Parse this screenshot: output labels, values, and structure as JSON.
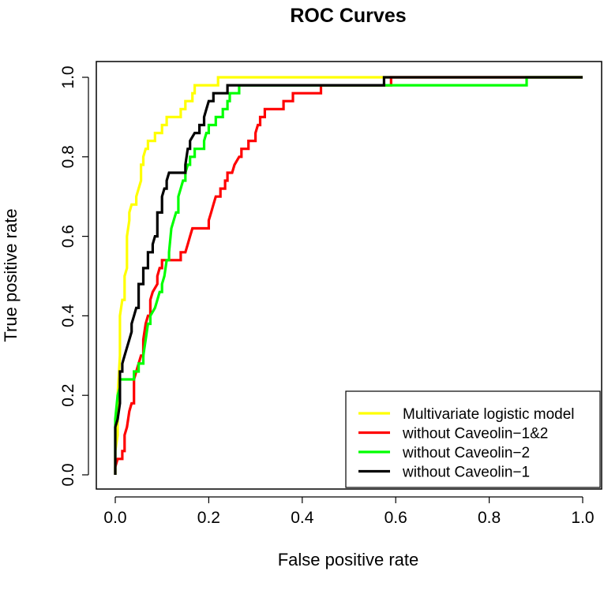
{
  "chart_data": {
    "type": "line",
    "title": "ROC Curves",
    "xlabel": "False positive rate",
    "ylabel": "True positive rate",
    "xlim": [
      0,
      1
    ],
    "ylim": [
      0,
      1
    ],
    "xticks": [
      "0.0",
      "0.2",
      "0.4",
      "0.6",
      "0.8",
      "1.0"
    ],
    "yticks": [
      "0.0",
      "0.2",
      "0.4",
      "0.6",
      "0.8",
      "1.0"
    ],
    "xtick_values": [
      0,
      0.2,
      0.4,
      0.6,
      0.8,
      1.0
    ],
    "ytick_values": [
      0,
      0.2,
      0.4,
      0.6,
      0.8,
      1.0
    ],
    "legend_position": "bottom-right",
    "series": [
      {
        "name": "Multivariate logistic model",
        "color": "#FFFF00",
        "points": [
          [
            0,
            0
          ],
          [
            0,
            0.06
          ],
          [
            0.005,
            0.1
          ],
          [
            0.005,
            0.2
          ],
          [
            0.01,
            0.3
          ],
          [
            0.01,
            0.4
          ],
          [
            0.015,
            0.44
          ],
          [
            0.02,
            0.44
          ],
          [
            0.02,
            0.5
          ],
          [
            0.025,
            0.52
          ],
          [
            0.025,
            0.6
          ],
          [
            0.03,
            0.64
          ],
          [
            0.03,
            0.66
          ],
          [
            0.035,
            0.68
          ],
          [
            0.045,
            0.68
          ],
          [
            0.045,
            0.7
          ],
          [
            0.05,
            0.72
          ],
          [
            0.055,
            0.74
          ],
          [
            0.055,
            0.78
          ],
          [
            0.06,
            0.78
          ],
          [
            0.06,
            0.8
          ],
          [
            0.065,
            0.82
          ],
          [
            0.07,
            0.82
          ],
          [
            0.07,
            0.84
          ],
          [
            0.085,
            0.84
          ],
          [
            0.085,
            0.86
          ],
          [
            0.1,
            0.86
          ],
          [
            0.1,
            0.88
          ],
          [
            0.11,
            0.88
          ],
          [
            0.11,
            0.9
          ],
          [
            0.14,
            0.9
          ],
          [
            0.14,
            0.92
          ],
          [
            0.15,
            0.92
          ],
          [
            0.15,
            0.94
          ],
          [
            0.165,
            0.94
          ],
          [
            0.165,
            0.96
          ],
          [
            0.17,
            0.96
          ],
          [
            0.17,
            0.98
          ],
          [
            0.2,
            0.98
          ],
          [
            0.2,
            0.98
          ],
          [
            0.22,
            0.98
          ],
          [
            0.22,
            1.0
          ],
          [
            0.58,
            1.0
          ],
          [
            1.0,
            1.0
          ]
        ]
      },
      {
        "name": "without Caveolin−1&2",
        "color": "#FF0000",
        "points": [
          [
            0,
            0
          ],
          [
            0,
            0.02
          ],
          [
            0.005,
            0.04
          ],
          [
            0.015,
            0.04
          ],
          [
            0.015,
            0.06
          ],
          [
            0.02,
            0.06
          ],
          [
            0.02,
            0.1
          ],
          [
            0.025,
            0.12
          ],
          [
            0.03,
            0.16
          ],
          [
            0.035,
            0.18
          ],
          [
            0.04,
            0.18
          ],
          [
            0.04,
            0.24
          ],
          [
            0.045,
            0.26
          ],
          [
            0.05,
            0.28
          ],
          [
            0.055,
            0.3
          ],
          [
            0.06,
            0.3
          ],
          [
            0.06,
            0.34
          ],
          [
            0.065,
            0.38
          ],
          [
            0.07,
            0.4
          ],
          [
            0.075,
            0.4
          ],
          [
            0.075,
            0.44
          ],
          [
            0.08,
            0.46
          ],
          [
            0.09,
            0.48
          ],
          [
            0.09,
            0.5
          ],
          [
            0.095,
            0.52
          ],
          [
            0.1,
            0.52
          ],
          [
            0.1,
            0.54
          ],
          [
            0.14,
            0.54
          ],
          [
            0.14,
            0.56
          ],
          [
            0.15,
            0.56
          ],
          [
            0.155,
            0.58
          ],
          [
            0.16,
            0.6
          ],
          [
            0.165,
            0.62
          ],
          [
            0.2,
            0.62
          ],
          [
            0.2,
            0.64
          ],
          [
            0.205,
            0.66
          ],
          [
            0.21,
            0.68
          ],
          [
            0.215,
            0.7
          ],
          [
            0.225,
            0.7
          ],
          [
            0.225,
            0.72
          ],
          [
            0.235,
            0.72
          ],
          [
            0.235,
            0.74
          ],
          [
            0.24,
            0.74
          ],
          [
            0.24,
            0.76
          ],
          [
            0.25,
            0.76
          ],
          [
            0.255,
            0.78
          ],
          [
            0.265,
            0.8
          ],
          [
            0.27,
            0.8
          ],
          [
            0.27,
            0.82
          ],
          [
            0.28,
            0.82
          ],
          [
            0.285,
            0.82
          ],
          [
            0.285,
            0.84
          ],
          [
            0.3,
            0.84
          ],
          [
            0.3,
            0.86
          ],
          [
            0.305,
            0.88
          ],
          [
            0.31,
            0.88
          ],
          [
            0.31,
            0.9
          ],
          [
            0.32,
            0.9
          ],
          [
            0.32,
            0.92
          ],
          [
            0.36,
            0.92
          ],
          [
            0.36,
            0.94
          ],
          [
            0.38,
            0.94
          ],
          [
            0.38,
            0.96
          ],
          [
            0.44,
            0.96
          ],
          [
            0.44,
            0.98
          ],
          [
            0.59,
            0.98
          ],
          [
            0.59,
            1.0
          ],
          [
            1.0,
            1.0
          ]
        ]
      },
      {
        "name": "without Caveolin−2",
        "color": "#00FF00",
        "points": [
          [
            0,
            0
          ],
          [
            0,
            0.14
          ],
          [
            0.005,
            0.2
          ],
          [
            0.01,
            0.22
          ],
          [
            0.01,
            0.24
          ],
          [
            0.04,
            0.24
          ],
          [
            0.04,
            0.26
          ],
          [
            0.05,
            0.26
          ],
          [
            0.05,
            0.28
          ],
          [
            0.06,
            0.28
          ],
          [
            0.06,
            0.3
          ],
          [
            0.065,
            0.34
          ],
          [
            0.07,
            0.38
          ],
          [
            0.075,
            0.38
          ],
          [
            0.075,
            0.4
          ],
          [
            0.085,
            0.42
          ],
          [
            0.09,
            0.44
          ],
          [
            0.095,
            0.46
          ],
          [
            0.1,
            0.46
          ],
          [
            0.1,
            0.48
          ],
          [
            0.105,
            0.5
          ],
          [
            0.11,
            0.54
          ],
          [
            0.115,
            0.54
          ],
          [
            0.115,
            0.56
          ],
          [
            0.12,
            0.62
          ],
          [
            0.125,
            0.64
          ],
          [
            0.13,
            0.66
          ],
          [
            0.135,
            0.66
          ],
          [
            0.135,
            0.7
          ],
          [
            0.14,
            0.72
          ],
          [
            0.145,
            0.74
          ],
          [
            0.15,
            0.74
          ],
          [
            0.15,
            0.76
          ],
          [
            0.155,
            0.78
          ],
          [
            0.16,
            0.78
          ],
          [
            0.16,
            0.8
          ],
          [
            0.17,
            0.8
          ],
          [
            0.17,
            0.82
          ],
          [
            0.19,
            0.82
          ],
          [
            0.19,
            0.84
          ],
          [
            0.195,
            0.86
          ],
          [
            0.2,
            0.86
          ],
          [
            0.2,
            0.88
          ],
          [
            0.215,
            0.88
          ],
          [
            0.215,
            0.9
          ],
          [
            0.23,
            0.9
          ],
          [
            0.23,
            0.92
          ],
          [
            0.24,
            0.92
          ],
          [
            0.24,
            0.94
          ],
          [
            0.245,
            0.94
          ],
          [
            0.245,
            0.96
          ],
          [
            0.265,
            0.96
          ],
          [
            0.265,
            0.98
          ],
          [
            0.575,
            0.98
          ],
          [
            0.88,
            0.98
          ],
          [
            0.88,
            1.0
          ],
          [
            1.0,
            1.0
          ]
        ]
      },
      {
        "name": "without Caveolin−1",
        "color": "#000000",
        "points": [
          [
            0,
            0
          ],
          [
            0,
            0.12
          ],
          [
            0.005,
            0.14
          ],
          [
            0.01,
            0.18
          ],
          [
            0.01,
            0.26
          ],
          [
            0.015,
            0.26
          ],
          [
            0.015,
            0.28
          ],
          [
            0.02,
            0.3
          ],
          [
            0.025,
            0.32
          ],
          [
            0.03,
            0.34
          ],
          [
            0.035,
            0.36
          ],
          [
            0.035,
            0.38
          ],
          [
            0.04,
            0.4
          ],
          [
            0.045,
            0.42
          ],
          [
            0.05,
            0.42
          ],
          [
            0.05,
            0.48
          ],
          [
            0.06,
            0.48
          ],
          [
            0.06,
            0.52
          ],
          [
            0.07,
            0.52
          ],
          [
            0.07,
            0.56
          ],
          [
            0.08,
            0.56
          ],
          [
            0.08,
            0.58
          ],
          [
            0.085,
            0.6
          ],
          [
            0.09,
            0.6
          ],
          [
            0.09,
            0.66
          ],
          [
            0.1,
            0.66
          ],
          [
            0.1,
            0.7
          ],
          [
            0.105,
            0.72
          ],
          [
            0.11,
            0.72
          ],
          [
            0.11,
            0.74
          ],
          [
            0.115,
            0.76
          ],
          [
            0.15,
            0.76
          ],
          [
            0.15,
            0.78
          ],
          [
            0.155,
            0.82
          ],
          [
            0.16,
            0.82
          ],
          [
            0.16,
            0.84
          ],
          [
            0.17,
            0.86
          ],
          [
            0.18,
            0.86
          ],
          [
            0.18,
            0.88
          ],
          [
            0.19,
            0.88
          ],
          [
            0.19,
            0.9
          ],
          [
            0.195,
            0.92
          ],
          [
            0.2,
            0.94
          ],
          [
            0.21,
            0.94
          ],
          [
            0.21,
            0.96
          ],
          [
            0.24,
            0.96
          ],
          [
            0.24,
            0.98
          ],
          [
            0.575,
            0.98
          ],
          [
            0.575,
            1.0
          ],
          [
            1.0,
            1.0
          ]
        ]
      }
    ]
  }
}
